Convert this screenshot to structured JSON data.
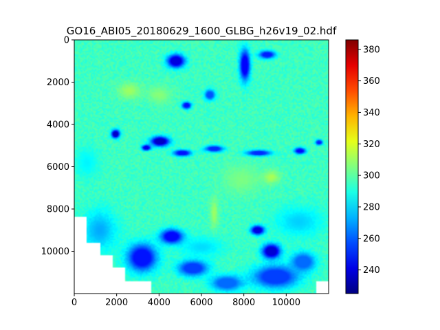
{
  "chart_data": {
    "type": "heatmap",
    "title": "GO16_ABI05_20180629_1600_GLBG_h26v19_02.hdf",
    "xlabel": "",
    "ylabel": "",
    "xlim": [
      0,
      12000
    ],
    "ylim": [
      12000,
      0
    ],
    "x_ticks": [
      0,
      2000,
      4000,
      6000,
      8000,
      10000
    ],
    "y_ticks": [
      0,
      2000,
      4000,
      6000,
      8000,
      10000
    ],
    "x_tick_labels": [
      "0",
      "2000",
      "4000",
      "6000",
      "8000",
      "10000"
    ],
    "y_tick_labels": [
      "0",
      "2000",
      "4000",
      "6000",
      "8000",
      "10000"
    ],
    "colormap": "jet",
    "colorbar": {
      "vmin": 225,
      "vmax": 386,
      "ticks": [
        240,
        260,
        280,
        300,
        320,
        340,
        360,
        380
      ],
      "tick_labels": [
        "240",
        "260",
        "280",
        "300",
        "320",
        "340",
        "360",
        "380"
      ]
    },
    "background_value": 295,
    "no_data_color": "#ffffff",
    "no_data_regions": [
      [
        0,
        8400,
        600,
        12000
      ],
      [
        600,
        9600,
        1200,
        12000
      ],
      [
        1200,
        10200,
        1800,
        12000
      ],
      [
        1800,
        10800,
        2400,
        12000
      ],
      [
        2400,
        11400,
        3600,
        12000
      ],
      [
        11400,
        11400,
        12000,
        12000
      ]
    ],
    "cold_features": [
      {
        "x": 4800,
        "y": 1000,
        "rx": 500,
        "ry": 380,
        "value": 240
      },
      {
        "x": 8050,
        "y": 1200,
        "rx": 300,
        "ry": 900,
        "value": 245
      },
      {
        "x": 9100,
        "y": 700,
        "rx": 450,
        "ry": 220,
        "value": 250
      },
      {
        "x": 5300,
        "y": 3100,
        "rx": 260,
        "ry": 200,
        "value": 248
      },
      {
        "x": 6400,
        "y": 2600,
        "rx": 300,
        "ry": 300,
        "value": 258
      },
      {
        "x": 1950,
        "y": 4450,
        "rx": 240,
        "ry": 240,
        "value": 236
      },
      {
        "x": 4050,
        "y": 4800,
        "rx": 520,
        "ry": 280,
        "value": 236
      },
      {
        "x": 3400,
        "y": 5100,
        "rx": 260,
        "ry": 160,
        "value": 242
      },
      {
        "x": 5100,
        "y": 5350,
        "rx": 500,
        "ry": 180,
        "value": 248
      },
      {
        "x": 6600,
        "y": 5150,
        "rx": 520,
        "ry": 180,
        "value": 252
      },
      {
        "x": 8700,
        "y": 5350,
        "rx": 700,
        "ry": 160,
        "value": 252
      },
      {
        "x": 10650,
        "y": 5250,
        "rx": 320,
        "ry": 180,
        "value": 246
      },
      {
        "x": 11550,
        "y": 4850,
        "rx": 200,
        "ry": 150,
        "value": 250
      },
      {
        "x": 9300,
        "y": 10000,
        "rx": 520,
        "ry": 420,
        "value": 238
      },
      {
        "x": 8650,
        "y": 9000,
        "rx": 380,
        "ry": 260,
        "value": 240
      },
      {
        "x": 4600,
        "y": 9300,
        "rx": 650,
        "ry": 420,
        "value": 246
      },
      {
        "x": 3200,
        "y": 10300,
        "rx": 850,
        "ry": 800,
        "value": 248
      },
      {
        "x": 5600,
        "y": 10800,
        "rx": 850,
        "ry": 450,
        "value": 255
      },
      {
        "x": 9500,
        "y": 11200,
        "rx": 1300,
        "ry": 650,
        "value": 255
      },
      {
        "x": 7200,
        "y": 11500,
        "rx": 900,
        "ry": 450,
        "value": 262
      },
      {
        "x": 10800,
        "y": 10500,
        "rx": 700,
        "ry": 550,
        "value": 262
      }
    ],
    "warm_features": [
      {
        "x": 2600,
        "y": 2400,
        "rx": 700,
        "ry": 500,
        "value": 312
      },
      {
        "x": 4000,
        "y": 2600,
        "rx": 700,
        "ry": 550,
        "value": 308
      },
      {
        "x": 7900,
        "y": 6600,
        "rx": 1200,
        "ry": 900,
        "value": 306
      },
      {
        "x": 6600,
        "y": 8200,
        "rx": 250,
        "ry": 900,
        "value": 312
      },
      {
        "x": 9300,
        "y": 6500,
        "rx": 500,
        "ry": 400,
        "value": 314
      }
    ],
    "mid_features": [
      {
        "x": 1200,
        "y": 9000,
        "rx": 1000,
        "ry": 1200,
        "value": 272
      },
      {
        "x": 600,
        "y": 5800,
        "rx": 700,
        "ry": 900,
        "value": 284
      },
      {
        "x": 10600,
        "y": 8600,
        "rx": 1400,
        "ry": 900,
        "value": 278
      },
      {
        "x": 6000,
        "y": 9800,
        "rx": 1300,
        "ry": 600,
        "value": 280
      }
    ]
  }
}
